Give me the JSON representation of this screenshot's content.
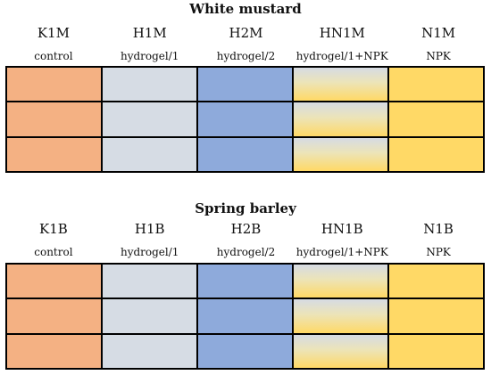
{
  "diagram": [
    {
      "title": "White mustard",
      "columns": [
        {
          "code": "K1M",
          "desc": "control",
          "fill": "#f4b183",
          "gradient": false
        },
        {
          "code": "H1M",
          "desc": "hydrogel/1",
          "fill": "#d6dce4",
          "gradient": false
        },
        {
          "code": "H2M",
          "desc": "hydrogel/2",
          "fill": "#8eaadb",
          "gradient": false
        },
        {
          "code": "HN1M",
          "desc": "hydrogel/1+NPK",
          "fill": "#ece4b8",
          "gradient": true
        },
        {
          "code": "N1M",
          "desc": "NPK",
          "fill": "#ffd966",
          "gradient": false
        }
      ]
    },
    {
      "title": "Spring barley",
      "columns": [
        {
          "code": "K1B",
          "desc": "control",
          "fill": "#f4b183",
          "gradient": false
        },
        {
          "code": "H1B",
          "desc": "hydrogel/1",
          "fill": "#d6dce4",
          "gradient": false
        },
        {
          "code": "H2B",
          "desc": "hydrogel/2",
          "fill": "#8eaadb",
          "gradient": false
        },
        {
          "code": "HN1B",
          "desc": "hydrogel/1+NPK",
          "fill": "#ece4b8",
          "gradient": true
        },
        {
          "code": "N1B",
          "desc": "NPK",
          "fill": "#ffd966",
          "gradient": false
        }
      ]
    }
  ]
}
